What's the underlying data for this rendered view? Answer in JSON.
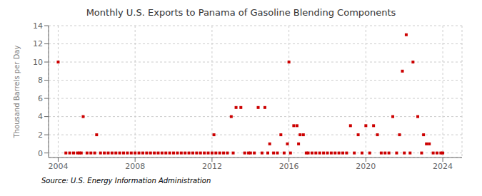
{
  "chart_data": {
    "type": "scatter",
    "title": "Monthly U.S. Exports to Panama of Gasoline Blending Components",
    "ylabel": "Thousand Barrels per Day",
    "annotations": [
      "Source: U.S. Energy Information Administration"
    ],
    "x": [
      2004.0,
      2004.4,
      2004.6,
      2004.8,
      2005.0,
      2005.1,
      2005.2,
      2005.3,
      2005.5,
      2005.7,
      2005.9,
      2006.0,
      2006.2,
      2006.4,
      2006.6,
      2006.8,
      2007.0,
      2007.2,
      2007.4,
      2007.6,
      2007.8,
      2008.0,
      2008.2,
      2008.4,
      2008.6,
      2008.8,
      2009.0,
      2009.2,
      2009.4,
      2009.6,
      2009.8,
      2010.0,
      2010.2,
      2010.4,
      2010.6,
      2010.8,
      2011.0,
      2011.2,
      2011.4,
      2011.6,
      2011.8,
      2012.0,
      2012.1,
      2012.2,
      2012.4,
      2012.6,
      2012.8,
      2013.0,
      2013.1,
      2013.25,
      2013.5,
      2013.7,
      2013.9,
      2014.0,
      2014.2,
      2014.4,
      2014.6,
      2014.75,
      2014.9,
      2015.0,
      2015.2,
      2015.4,
      2015.58,
      2015.75,
      2015.92,
      2016.0,
      2016.08,
      2016.25,
      2016.42,
      2016.5,
      2016.58,
      2016.75,
      2016.9,
      2017.0,
      2017.2,
      2017.4,
      2017.6,
      2017.8,
      2018.0,
      2018.2,
      2018.4,
      2018.6,
      2018.8,
      2019.0,
      2019.2,
      2019.4,
      2019.6,
      2019.8,
      2020.0,
      2020.2,
      2020.4,
      2020.6,
      2020.8,
      2021.0,
      2021.2,
      2021.4,
      2021.6,
      2021.75,
      2021.9,
      2022.0,
      2022.1,
      2022.3,
      2022.45,
      2022.7,
      2022.9,
      2023.0,
      2023.15,
      2023.3,
      2023.5,
      2023.7,
      2023.9,
      2024.0
    ],
    "values": [
      10,
      0,
      0,
      0,
      0,
      0,
      0,
      4,
      0,
      0,
      0,
      2,
      0,
      0,
      0,
      0,
      0,
      0,
      0,
      0,
      0,
      0,
      0,
      0,
      0,
      0,
      0,
      0,
      0,
      0,
      0,
      0,
      0,
      0,
      0,
      0,
      0,
      0,
      0,
      0,
      0,
      0,
      2,
      0,
      0,
      0,
      0,
      4,
      0,
      5,
      5,
      0,
      0,
      0,
      0,
      5,
      0,
      5,
      0,
      1,
      0,
      0,
      2,
      0,
      1,
      10,
      0,
      3,
      3,
      1,
      2,
      2,
      0,
      0,
      0,
      0,
      0,
      0,
      0,
      0,
      0,
      0,
      0,
      0,
      3,
      0,
      2,
      0,
      3,
      0,
      3,
      2,
      0,
      0,
      0,
      4,
      0,
      2,
      9,
      0,
      13,
      0,
      10,
      4,
      0,
      2,
      1,
      1,
      0,
      0,
      0,
      0
    ],
    "color": "#cc0000",
    "marker": "square",
    "xlim": [
      2003.5,
      2025.0
    ],
    "ylim": [
      -0.5,
      14
    ],
    "xticks": [
      2004,
      2008,
      2012,
      2016,
      2020,
      2024
    ],
    "yticks": [
      0,
      2,
      4,
      6,
      8,
      10,
      12,
      14
    ],
    "grid": true
  }
}
